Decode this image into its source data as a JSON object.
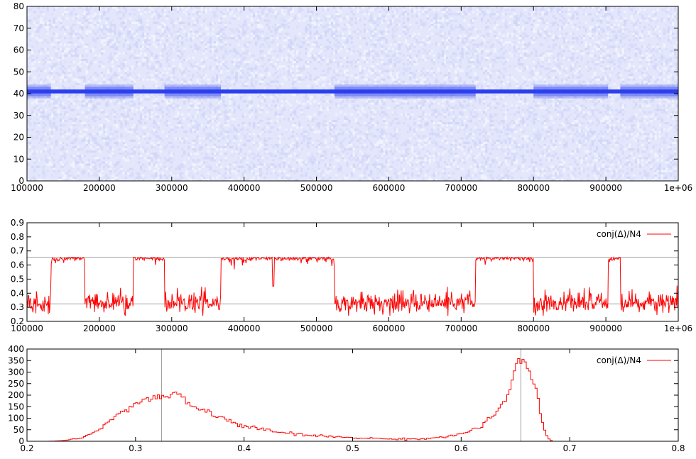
{
  "chart_data": [
    {
      "type": "heatmap",
      "title": "",
      "xlabel": "",
      "ylabel": "",
      "xlim": [
        100000,
        1000000
      ],
      "ylim": [
        0,
        80
      ],
      "xticks": [
        100000,
        200000,
        300000,
        400000,
        500000,
        600000,
        700000,
        800000,
        900000,
        1000000
      ],
      "xtick_labels": [
        "100000",
        "200000",
        "300000",
        "400000",
        "500000",
        "600000",
        "700000",
        "800000",
        "900000",
        "1e+06"
      ],
      "yticks": [
        0,
        10,
        20,
        30,
        40,
        50,
        60,
        70,
        80
      ],
      "ytick_labels": [
        "0",
        "10",
        "20",
        "30",
        "40",
        "50",
        "60",
        "70",
        "80"
      ],
      "band_center": 41,
      "wide_band_segments": [
        [
          100000,
          133000
        ],
        [
          180000,
          247000
        ],
        [
          290000,
          368000
        ],
        [
          525000,
          720000
        ],
        [
          800000,
          903000
        ],
        [
          920000,
          1000000
        ]
      ],
      "colors": {
        "background": "#e4e7fb",
        "band": "#2b3ff0",
        "wide_band": "#5b6cf2"
      }
    },
    {
      "type": "line",
      "title": "",
      "xlabel": "",
      "ylabel": "",
      "xlim": [
        100000,
        1000000
      ],
      "ylim": [
        0.2,
        0.9
      ],
      "xticks": [
        100000,
        200000,
        300000,
        400000,
        500000,
        600000,
        700000,
        800000,
        900000,
        1000000
      ],
      "xtick_labels": [
        "100000",
        "200000",
        "300000",
        "400000",
        "500000",
        "600000",
        "700000",
        "800000",
        "900000",
        "1e+06"
      ],
      "yticks": [
        0.2,
        0.3,
        0.4,
        0.5,
        0.6,
        0.7,
        0.8,
        0.9
      ],
      "ytick_labels": [
        "0.2",
        "0.3",
        "0.4",
        "0.5",
        "0.6",
        "0.7",
        "0.8",
        "0.9"
      ],
      "hlines": [
        0.324,
        0.655
      ],
      "legend": {
        "label": "conj(Δ)/N4",
        "position": "top-right"
      },
      "segments": [
        {
          "x": [
            100000,
            133000
          ],
          "level": 0.33
        },
        {
          "x": [
            133000,
            180000
          ],
          "level": 0.655
        },
        {
          "x": [
            180000,
            247000
          ],
          "level": 0.33
        },
        {
          "x": [
            247000,
            290000
          ],
          "level": 0.655
        },
        {
          "x": [
            290000,
            368000
          ],
          "level": 0.33
        },
        {
          "x": [
            368000,
            525000
          ],
          "level": 0.655
        },
        {
          "x": [
            525000,
            720000
          ],
          "level": 0.33
        },
        {
          "x": [
            720000,
            800000
          ],
          "level": 0.655
        },
        {
          "x": [
            800000,
            903000
          ],
          "level": 0.33
        },
        {
          "x": [
            903000,
            920000
          ],
          "level": 0.655
        },
        {
          "x": [
            920000,
            1000000
          ],
          "level": 0.33
        }
      ],
      "dips": [
        {
          "x": 440000,
          "y": 0.45
        }
      ],
      "color": "#ff0000"
    },
    {
      "type": "histogram",
      "title": "",
      "xlabel": "",
      "ylabel": "",
      "xlim": [
        0.2,
        0.8
      ],
      "ylim": [
        0,
        400
      ],
      "xticks": [
        0.2,
        0.3,
        0.4,
        0.5,
        0.6,
        0.7,
        0.8
      ],
      "xtick_labels": [
        "0.2",
        "0.3",
        "0.4",
        "0.5",
        "0.6",
        "0.7",
        "0.8"
      ],
      "yticks": [
        0,
        50,
        100,
        150,
        200,
        250,
        300,
        350,
        400
      ],
      "ytick_labels": [
        "0",
        "50",
        "100",
        "150",
        "200",
        "250",
        "300",
        "350",
        "400"
      ],
      "vlines": [
        0.324,
        0.655
      ],
      "legend": {
        "label": "conj(Δ)/N4",
        "position": "top-right"
      },
      "bin_width": 0.002,
      "profile": [
        [
          0.2,
          0
        ],
        [
          0.22,
          0
        ],
        [
          0.23,
          2
        ],
        [
          0.24,
          6
        ],
        [
          0.25,
          15
        ],
        [
          0.26,
          35
        ],
        [
          0.27,
          65
        ],
        [
          0.28,
          100
        ],
        [
          0.29,
          135
        ],
        [
          0.3,
          165
        ],
        [
          0.31,
          180
        ],
        [
          0.32,
          190
        ],
        [
          0.33,
          195
        ],
        [
          0.335,
          205
        ],
        [
          0.34,
          200
        ],
        [
          0.35,
          160
        ],
        [
          0.36,
          140
        ],
        [
          0.37,
          118
        ],
        [
          0.38,
          100
        ],
        [
          0.39,
          82
        ],
        [
          0.4,
          65
        ],
        [
          0.42,
          48
        ],
        [
          0.44,
          35
        ],
        [
          0.46,
          25
        ],
        [
          0.48,
          20
        ],
        [
          0.5,
          16
        ],
        [
          0.52,
          12
        ],
        [
          0.54,
          10
        ],
        [
          0.56,
          10
        ],
        [
          0.58,
          16
        ],
        [
          0.6,
          30
        ],
        [
          0.62,
          70
        ],
        [
          0.63,
          110
        ],
        [
          0.64,
          170
        ],
        [
          0.645,
          230
        ],
        [
          0.65,
          320
        ],
        [
          0.652,
          350
        ],
        [
          0.656,
          345
        ],
        [
          0.66,
          320
        ],
        [
          0.665,
          270
        ],
        [
          0.67,
          200
        ],
        [
          0.675,
          80
        ],
        [
          0.678,
          35
        ],
        [
          0.68,
          12
        ],
        [
          0.684,
          0
        ],
        [
          0.8,
          0
        ]
      ],
      "color": "#ff0000"
    }
  ]
}
